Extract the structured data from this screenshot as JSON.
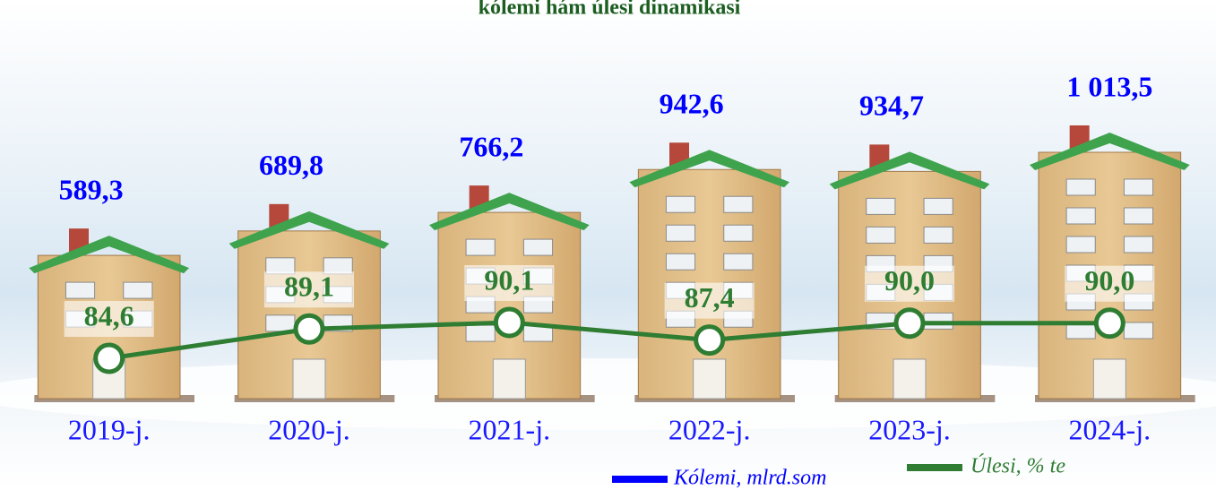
{
  "chart_data": {
    "type": "bar",
    "title": "kólemi hám úlesi dinamikasi",
    "categories": [
      "2019-j.",
      "2020-j.",
      "2021-j.",
      "2022-j.",
      "2023-j.",
      "2024-j."
    ],
    "series": [
      {
        "name": "Kólemi, mlrd.som",
        "color": "#0000ff",
        "values": [
          589.3,
          689.8,
          766.2,
          942.6,
          934.7,
          1013.5
        ],
        "value_labels": [
          "589,3",
          "689,8",
          "766,2",
          "942,6",
          "934,7",
          "1 013,5"
        ]
      },
      {
        "name": "Úlesi, % te",
        "type": "line",
        "axis": "y2",
        "color": "#2e7d32",
        "values": [
          84.6,
          89.1,
          90.1,
          87.4,
          90.0,
          90.0
        ],
        "value_labels": [
          "84,6",
          "89,1",
          "90,1",
          "87,4",
          "90,0",
          "90,0"
        ]
      }
    ]
  }
}
